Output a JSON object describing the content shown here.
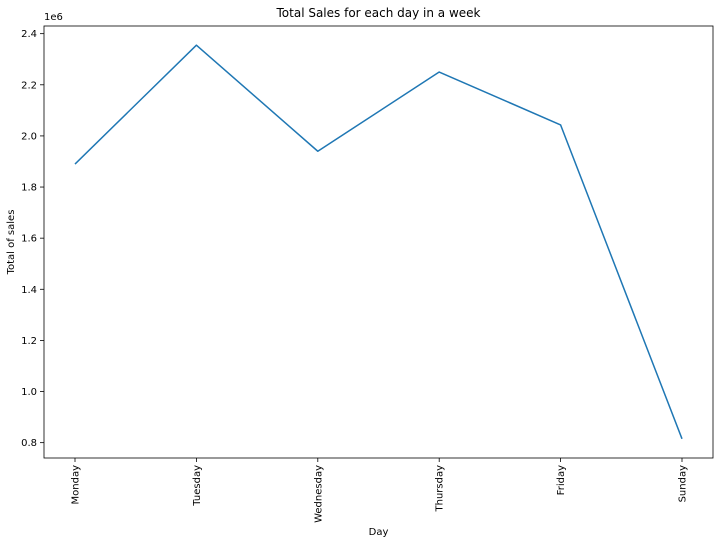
{
  "chart_data": {
    "type": "line",
    "title": "Total Sales for each day in a week",
    "xlabel": "Day",
    "ylabel": "Total of sales",
    "y_offset_label": "1e6",
    "categories": [
      "Monday",
      "Tuesday",
      "Wednesday",
      "Thursday",
      "Friday",
      "Sunday"
    ],
    "series": [
      {
        "values": [
          1.89,
          2.355,
          1.94,
          2.25,
          2.043,
          0.815
        ],
        "color": "#1f77b4"
      }
    ],
    "y_scale_multiplier": 1000000,
    "ylim": [
      0.74,
      2.43
    ],
    "yticks": [
      "0.8",
      "1.0",
      "1.2",
      "1.4",
      "1.6",
      "1.8",
      "2.0",
      "2.2",
      "2.4"
    ],
    "grid": false,
    "legend": "none"
  }
}
